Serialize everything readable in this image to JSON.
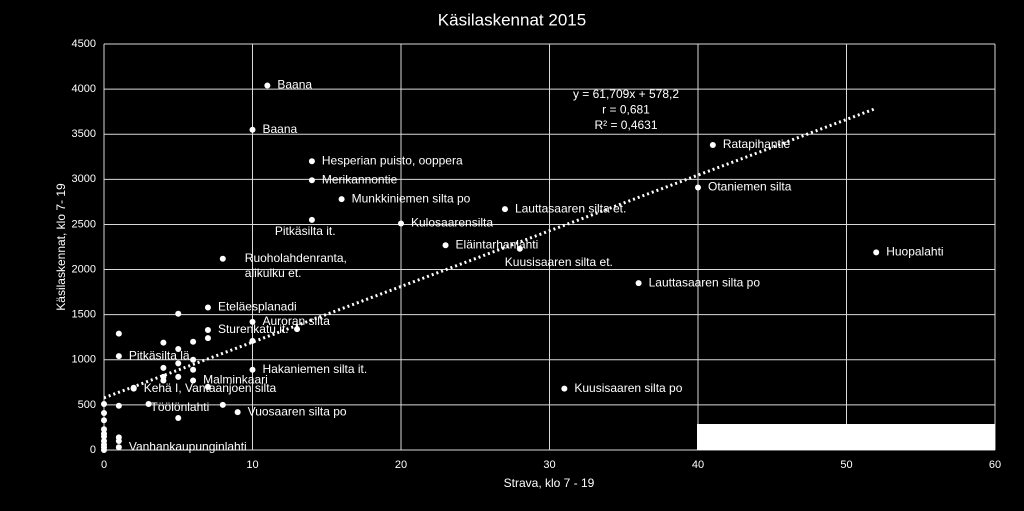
{
  "chart_data": {
    "type": "scatter",
    "title": "Käsilaskennat 2015",
    "x_label": "Strava, klo 7 - 19",
    "y_label": "Käsilaskennat, klo 7- 19",
    "xlim": [
      0,
      60
    ],
    "xticks": [
      0,
      10,
      20,
      30,
      40,
      50,
      60
    ],
    "ylim": [
      0,
      4500
    ],
    "yticks": [
      0,
      500,
      1000,
      1500,
      2000,
      2500,
      3000,
      3500,
      4000,
      4500
    ],
    "grid": true,
    "color": "#ffffff",
    "x": [
      11,
      10,
      14,
      14,
      16,
      14,
      20,
      27,
      23,
      28,
      41,
      40,
      52,
      36,
      8,
      7,
      10,
      7,
      1,
      10,
      6,
      2,
      3,
      9,
      31,
      1,
      1,
      5,
      4,
      5,
      6,
      7,
      13,
      10,
      4,
      5,
      6,
      6,
      4,
      4,
      5,
      2,
      7,
      1,
      5,
      8,
      0,
      0,
      0,
      0,
      0,
      0,
      0,
      0,
      0,
      0,
      1,
      1
    ],
    "values": [
      4040,
      3550,
      3200,
      2990,
      2780,
      2550,
      2510,
      2670,
      2270,
      2230,
      3380,
      2910,
      2190,
      1850,
      2120,
      1580,
      1420,
      1330,
      1040,
      890,
      770,
      680,
      510,
      420,
      680,
      30,
      1290,
      1510,
      1190,
      1120,
      1200,
      1240,
      1340,
      1210,
      910,
      960,
      1000,
      890,
      810,
      770,
      810,
      690,
      700,
      490,
      355,
      500,
      510,
      410,
      330,
      230,
      180,
      150,
      100,
      60,
      30,
      0,
      140,
      100
    ],
    "labels": [
      "Baana",
      "Baana",
      "Hesperian puisto, ooppera",
      "Merikannontie",
      "Munkkiniemen silta po",
      "Pitkäsilta it.",
      "Kulosaarensilta",
      "Lauttasaaren silta et.",
      "Eläintarhanlahti",
      "Kuusisaaren silta et.",
      "Ratapihantie",
      "Otaniemen silta",
      "Huopalahti",
      "Lauttasaaren silta po",
      [
        "Ruoholahdenranta,",
        "alikulku et."
      ],
      "Eteläesplanadi",
      "Auroran silta",
      "Sturenkatu it.",
      "Pitkäsilta lä",
      "Hakaniemen silta it.",
      "Malminkaari",
      "Kehä I, Vantaanjoen silta",
      "Töölönlahti",
      "Vuosaaren silta po",
      "Kuusisaaren silta po",
      "Vanhankaupunginlahti",
      null,
      null,
      null,
      null,
      null,
      null,
      null,
      null,
      null,
      null,
      null,
      null,
      null,
      null,
      null,
      null,
      null,
      null,
      null,
      null,
      null,
      null,
      null,
      null,
      null,
      null,
      null,
      null,
      null,
      null,
      null,
      null
    ],
    "trendline": {
      "slope": 61.709,
      "intercept": 578.2
    },
    "annotations": [
      "y = 61,709x + 578,2",
      "r = 0,681",
      "R² = 0,4631"
    ]
  }
}
